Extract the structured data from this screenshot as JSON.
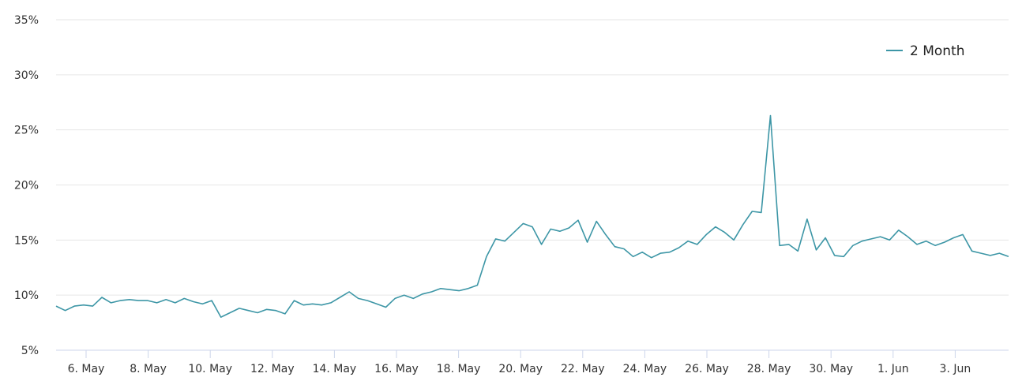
{
  "chart_data": {
    "type": "line",
    "title": "",
    "xlabel": "",
    "ylabel": "",
    "ylim": [
      5,
      35
    ],
    "y_ticks": [
      "5%",
      "10%",
      "15%",
      "20%",
      "25%",
      "30%",
      "35%"
    ],
    "x_ticks": [
      "6. May",
      "8. May",
      "10. May",
      "12. May",
      "14. May",
      "16. May",
      "18. May",
      "20. May",
      "22. May",
      "24. May",
      "26. May",
      "28. May",
      "30. May",
      "1. Jun",
      "3. Jun"
    ],
    "grid": true,
    "legend_position": "top-right",
    "series": [
      {
        "name": "2 Month",
        "color": "#3d96a6",
        "x_start": "5. May",
        "x_step_days": 0.5,
        "values": [
          9.0,
          8.6,
          9.0,
          9.1,
          9.0,
          9.8,
          9.3,
          9.5,
          9.6,
          9.5,
          9.5,
          9.3,
          9.6,
          9.3,
          9.7,
          9.4,
          9.2,
          9.5,
          8.0,
          8.4,
          8.8,
          8.6,
          8.4,
          8.7,
          8.6,
          8.3,
          9.5,
          9.1,
          9.2,
          9.1,
          9.3,
          9.8,
          10.3,
          9.7,
          9.5,
          9.2,
          8.9,
          9.7,
          10.0,
          9.7,
          10.1,
          10.3,
          10.6,
          10.5,
          10.4,
          10.6,
          10.9,
          13.5,
          15.1,
          14.9,
          15.7,
          16.5,
          16.2,
          14.6,
          16.0,
          15.8,
          16.1,
          16.8,
          14.8,
          16.7,
          15.5,
          14.4,
          14.2,
          13.5,
          13.9,
          13.4,
          13.8,
          13.9,
          14.3,
          14.9,
          14.6,
          15.5,
          16.2,
          15.7,
          15.0,
          16.4,
          17.6,
          17.5,
          26.3,
          14.5,
          14.6,
          14.0,
          16.9,
          14.1,
          15.2,
          13.6,
          13.5,
          14.5,
          14.9,
          15.1,
          15.3,
          15.0,
          15.9,
          15.3,
          14.6,
          14.9,
          14.5,
          14.8,
          15.2,
          15.5,
          14.0,
          13.8,
          13.6,
          13.8,
          13.5
        ]
      }
    ]
  },
  "legend": {
    "label": "2 Month"
  }
}
